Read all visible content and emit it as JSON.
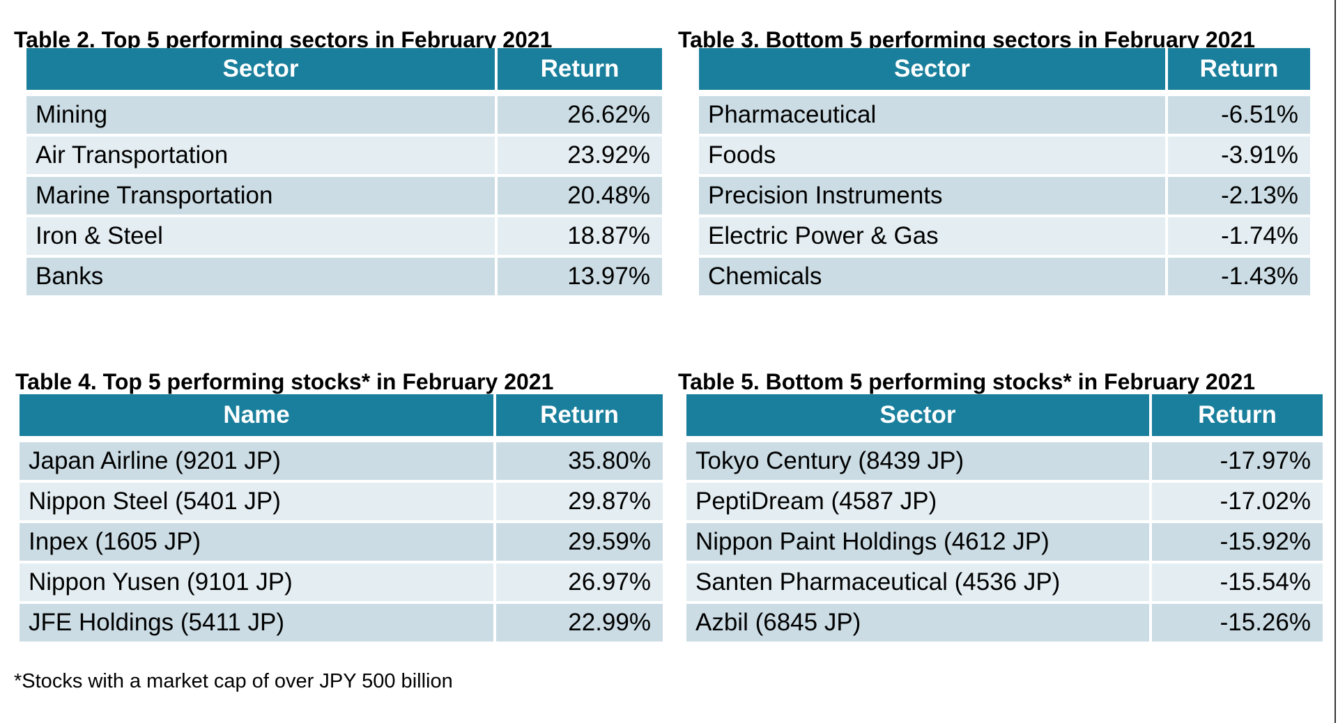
{
  "colors": {
    "header_bg": "#1A7F9C",
    "header_text": "#FFFFFF",
    "row_dark": "#CBDCE4",
    "row_light": "#E4EEF2",
    "cell_text": "#000000",
    "title_text": "#000000",
    "window_edge": "#333333"
  },
  "footnote": "*Stocks with a market cap of over JPY 500 billion",
  "tables": [
    {
      "title": "Table 2. Top 5 performing sectors in February 2021",
      "columns": [
        "Sector",
        "Return"
      ],
      "rows": [
        [
          "Mining",
          "26.62%"
        ],
        [
          "Air Transportation",
          "23.92%"
        ],
        [
          "Marine Transportation",
          "20.48%"
        ],
        [
          "Iron & Steel",
          "18.87%"
        ],
        [
          "Banks",
          "13.97%"
        ]
      ]
    },
    {
      "title": "Table 3. Bottom 5 performing sectors in February 2021",
      "columns": [
        "Sector",
        "Return"
      ],
      "rows": [
        [
          "Pharmaceutical",
          "-6.51%"
        ],
        [
          "Foods",
          "-3.91%"
        ],
        [
          "Precision Instruments",
          "-2.13%"
        ],
        [
          "Electric Power & Gas",
          "-1.74%"
        ],
        [
          "Chemicals",
          "-1.43%"
        ]
      ]
    },
    {
      "title": "Table 4. Top 5 performing stocks* in February 2021",
      "columns": [
        "Name",
        "Return"
      ],
      "rows": [
        [
          "Japan Airline (9201 JP)",
          "35.80%"
        ],
        [
          "Nippon Steel (5401 JP)",
          "29.87%"
        ],
        [
          "Inpex (1605 JP)",
          "29.59%"
        ],
        [
          "Nippon Yusen (9101 JP)",
          "26.97%"
        ],
        [
          "JFE Holdings (5411 JP)",
          "22.99%"
        ]
      ]
    },
    {
      "title": "Table 5. Bottom 5 performing stocks* in February 2021",
      "columns": [
        "Sector",
        "Return"
      ],
      "rows": [
        [
          "Tokyo Century (8439 JP)",
          "-17.97%"
        ],
        [
          "PeptiDream (4587 JP)",
          "-17.02%"
        ],
        [
          "Nippon Paint Holdings (4612 JP)",
          "-15.92%"
        ],
        [
          "Santen Pharmaceutical (4536 JP)",
          "-15.54%"
        ],
        [
          "Azbil (6845 JP)",
          "-15.26%"
        ]
      ]
    }
  ]
}
